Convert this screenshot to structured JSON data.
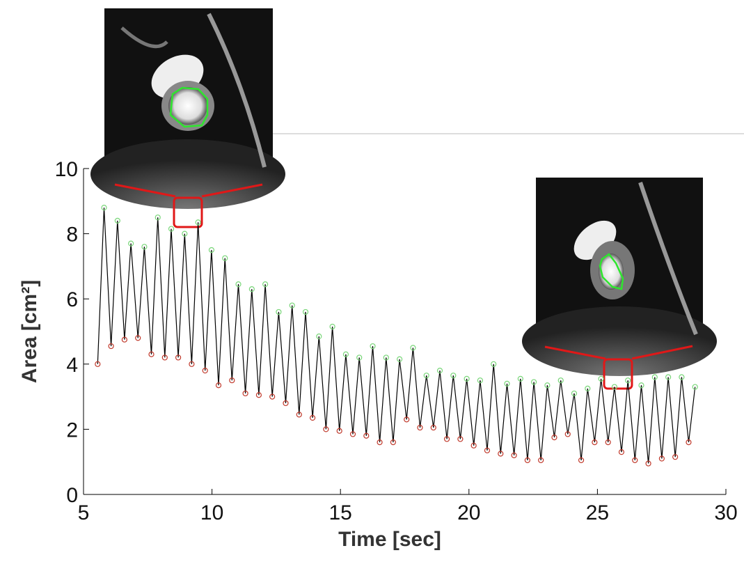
{
  "chart_data": {
    "type": "line",
    "xlabel": "Time [sec]",
    "ylabel": "Area [cm²]",
    "xlim": [
      5,
      30
    ],
    "xticks": [
      5,
      10,
      15,
      20,
      25,
      30
    ],
    "ylim": [
      0,
      10
    ],
    "yticks": [
      0,
      2,
      4,
      6,
      8,
      10
    ],
    "line_color": "#000000",
    "series": [
      {
        "color": "#7ad67a",
        "x": [
          5.8,
          6.323,
          6.845,
          7.368,
          7.891,
          8.414,
          8.936,
          9.459,
          9.982,
          10.505,
          11.027,
          11.55,
          12.073,
          12.595,
          13.118,
          13.641,
          14.164,
          14.686,
          15.209,
          15.732,
          16.255,
          16.777,
          17.3,
          17.823,
          18.345,
          18.868,
          19.391,
          19.914,
          20.436,
          20.959,
          21.482,
          22.005,
          22.527,
          23.05,
          23.573,
          24.095,
          24.618,
          25.141,
          25.664,
          26.186,
          26.709,
          27.232,
          27.755,
          28.277,
          28.8
        ],
        "values": [
          8.8,
          8.4,
          7.7,
          7.6,
          8.5,
          8.15,
          8.0,
          8.35,
          7.5,
          7.25,
          6.45,
          6.3,
          6.45,
          5.6,
          5.8,
          5.6,
          4.85,
          5.15,
          4.3,
          4.2,
          4.55,
          4.2,
          4.15,
          4.5,
          3.65,
          3.8,
          3.65,
          3.55,
          3.5,
          4.0,
          3.4,
          3.55,
          3.45,
          3.35,
          3.5,
          3.1,
          3.25,
          3.55,
          3.3,
          3.5,
          3.35,
          3.6,
          3.6,
          3.6,
          3.3
        ]
      },
      {
        "color": "#c0392b",
        "x": [
          5.55,
          6.073,
          6.595,
          7.118,
          7.641,
          8.164,
          8.686,
          9.209,
          9.732,
          10.255,
          10.777,
          11.3,
          11.823,
          12.345,
          12.868,
          13.391,
          13.914,
          14.436,
          14.959,
          15.482,
          16.005,
          16.527,
          17.05,
          17.573,
          18.095,
          18.618,
          19.141,
          19.664,
          20.186,
          20.709,
          21.232,
          21.755,
          22.277,
          22.8,
          23.323,
          23.845,
          24.368,
          24.891,
          25.414,
          25.936,
          26.459,
          26.982,
          27.505,
          28.027,
          28.55
        ],
        "values": [
          4.0,
          4.55,
          4.75,
          4.8,
          4.3,
          4.2,
          4.2,
          4.0,
          3.8,
          3.35,
          3.5,
          3.1,
          3.05,
          3.0,
          2.8,
          2.45,
          2.35,
          2.0,
          1.95,
          1.85,
          1.8,
          1.6,
          1.6,
          2.3,
          2.05,
          2.05,
          1.7,
          1.7,
          1.5,
          1.35,
          1.25,
          1.2,
          1.05,
          1.05,
          1.75,
          1.85,
          1.05,
          1.6,
          1.6,
          1.3,
          1.05,
          0.95,
          1.1,
          1.15,
          1.6
        ]
      }
    ]
  }
}
